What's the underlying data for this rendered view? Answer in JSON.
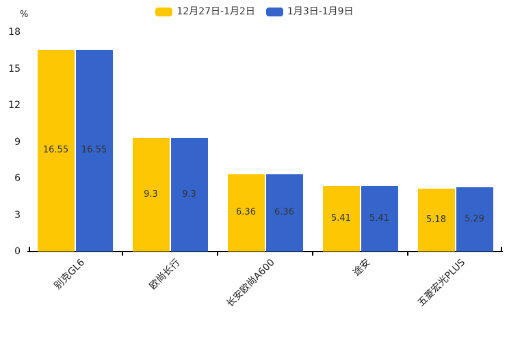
{
  "unit_label": "%",
  "colors": {
    "series1": "#FDC704",
    "series2": "#3565CB",
    "axis": "#000000",
    "tick_text": "#1a1a1a",
    "value_text": "#333333",
    "background": "#ffffff"
  },
  "chart_data": {
    "type": "bar",
    "title": "",
    "categories": [
      "别克GL6",
      "欧尚长行",
      "长安欧尚A600",
      "途安",
      "五菱宏光PLUS"
    ],
    "series": [
      {
        "name": "12月27日-1月2日",
        "color": "#FDC704",
        "values": [
          16.55,
          9.3,
          6.36,
          5.41,
          5.18
        ]
      },
      {
        "name": "1月3日-1月9日",
        "color": "#3565CB",
        "values": [
          16.55,
          9.3,
          6.36,
          5.41,
          5.29
        ]
      }
    ],
    "xlabel": "",
    "ylabel": "%",
    "ylim": [
      0,
      18
    ],
    "yticks": [
      0,
      3,
      6,
      9,
      12,
      15,
      18
    ],
    "grid": false,
    "legend_position": "top-center",
    "value_labels": "inside-center"
  }
}
